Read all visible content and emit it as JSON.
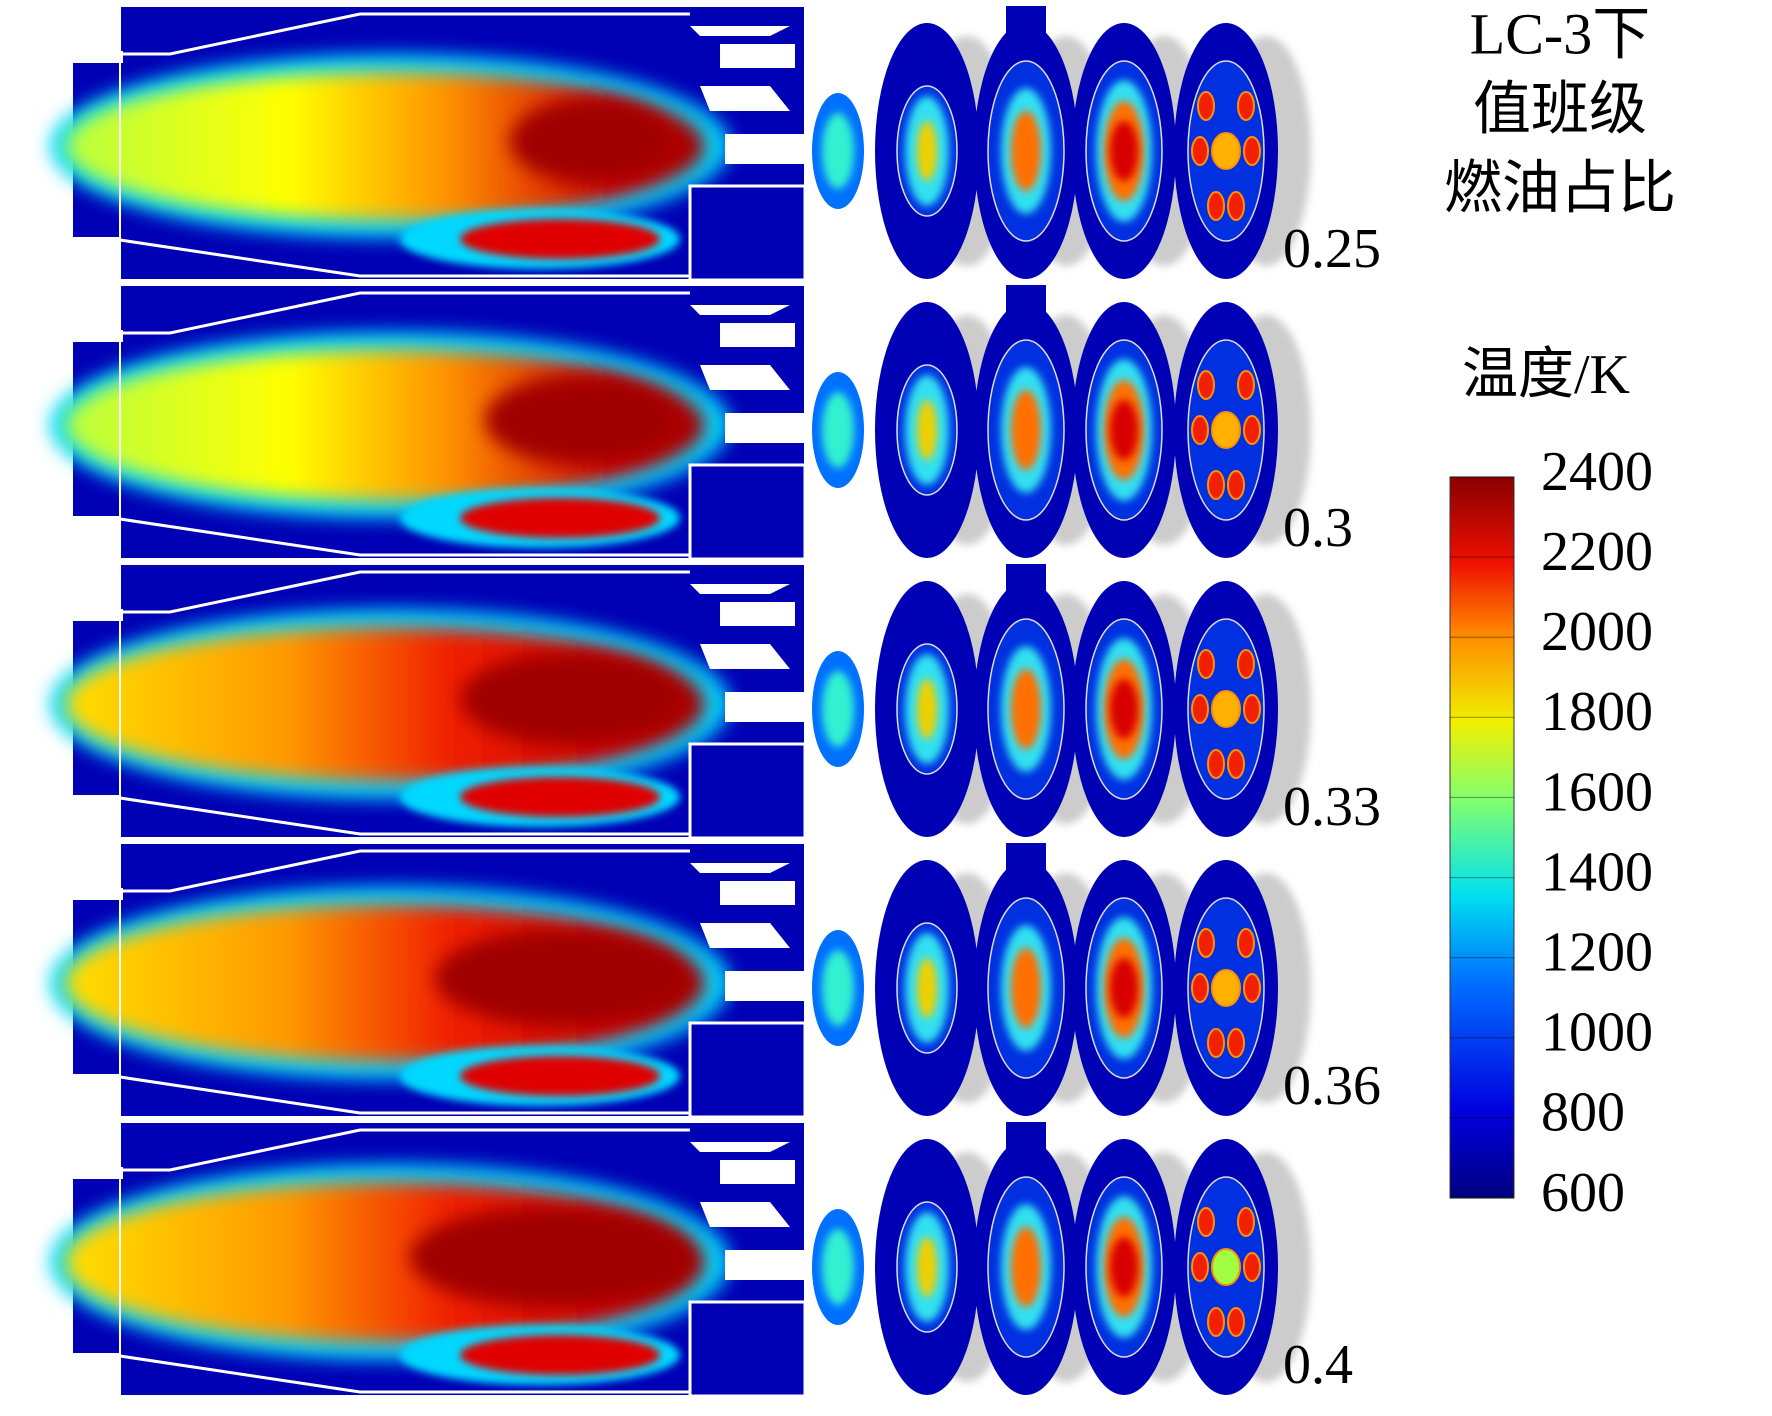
{
  "title_lines": [
    "LC-3下",
    "值班级",
    "燃油占比"
  ],
  "colorbar": {
    "label": "温度/K",
    "range": [
      600,
      2400
    ],
    "ticks": [
      2400,
      2200,
      2000,
      1800,
      1600,
      1400,
      1200,
      1000,
      800,
      600
    ]
  },
  "fuel_ratios": [
    0.25,
    0.3,
    0.33,
    0.36,
    0.4
  ]
}
